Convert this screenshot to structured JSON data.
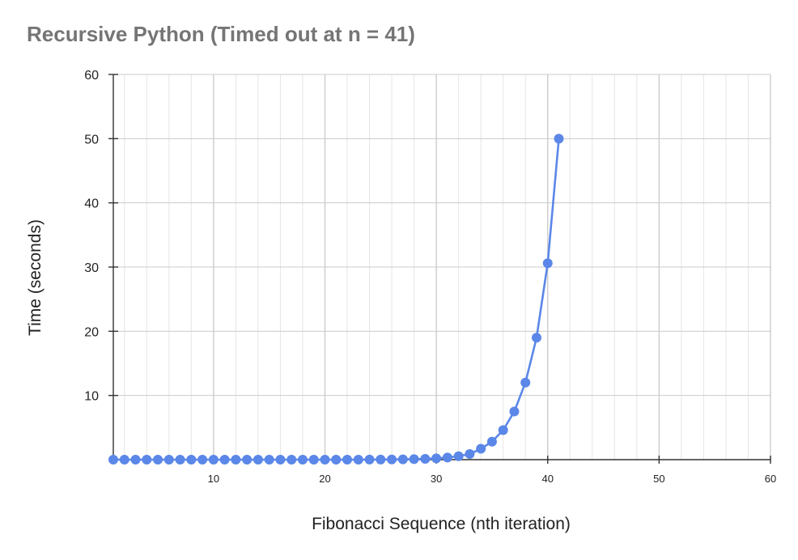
{
  "chart_data": {
    "type": "line",
    "title": "Recursive Python (Timed out at n = 41)",
    "xlabel": "Fibonacci Sequence (nth iteration)",
    "ylabel": "Time (seconds)",
    "xlim": [
      1,
      60
    ],
    "ylim": [
      0,
      60
    ],
    "xticks": [
      10,
      20,
      30,
      40,
      50,
      60
    ],
    "yticks": [
      10,
      20,
      30,
      40,
      50,
      60
    ],
    "xtick_labels": [
      "10",
      "20",
      "30",
      "40",
      "50",
      "60"
    ],
    "ytick_labels": [
      "10",
      "20",
      "30",
      "40",
      "50",
      "60"
    ],
    "grid": true,
    "legend": "none",
    "series_color": "#5b87e8",
    "series": [
      {
        "x": [
          1,
          2,
          3,
          4,
          5,
          6,
          7,
          8,
          9,
          10,
          11,
          12,
          13,
          14,
          15,
          16,
          17,
          18,
          19,
          20,
          21,
          22,
          23,
          24,
          25,
          26,
          27,
          28,
          29,
          30,
          31,
          32,
          33,
          34,
          35,
          36,
          37,
          38,
          39,
          40,
          41
        ],
        "y": [
          0,
          0,
          0,
          0,
          0,
          0,
          0,
          0,
          0,
          0,
          0,
          0,
          0,
          0,
          0,
          0,
          0,
          0,
          0,
          0,
          0,
          0,
          0,
          0.01,
          0.02,
          0.03,
          0.05,
          0.08,
          0.13,
          0.2,
          0.33,
          0.54,
          0.88,
          1.7,
          2.8,
          4.6,
          7.5,
          12.0,
          19.0,
          30.6,
          50.0
        ]
      }
    ]
  }
}
